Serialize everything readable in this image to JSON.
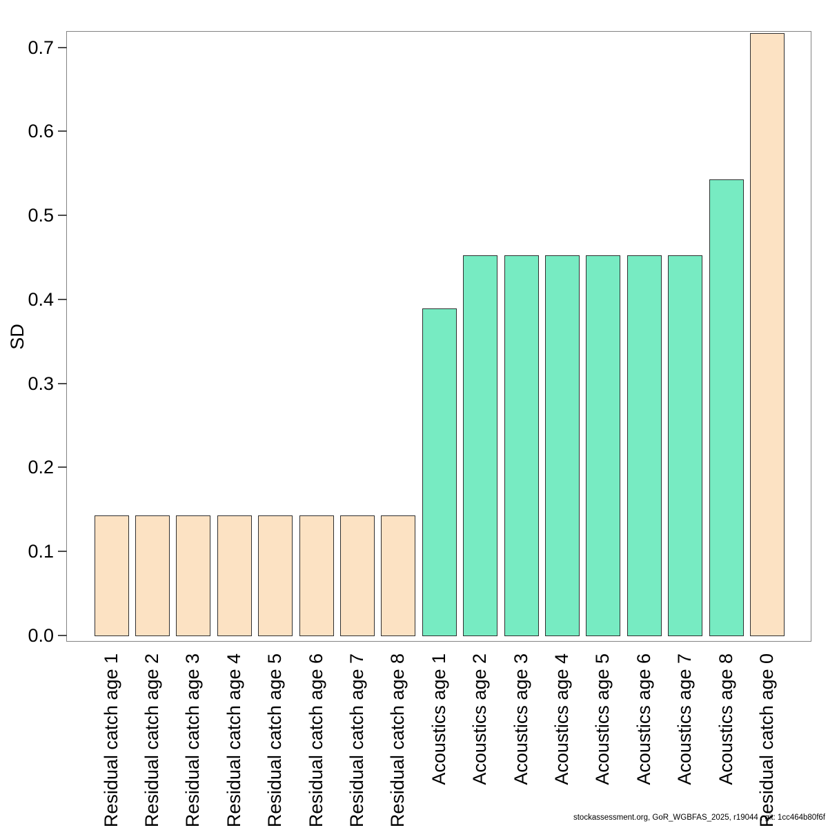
{
  "figure": {
    "background": "#ffffff"
  },
  "footer": {
    "text": "stockassessment.org, GoR_WGBFAS_2025, r19044 , git: 1cc464b80f6f"
  },
  "chart_data": {
    "type": "bar",
    "title": "",
    "xlabel": "",
    "ylabel": "SD",
    "categories": [
      "Residual catch age 1",
      "Residual catch age 2",
      "Residual catch age 3",
      "Residual catch age 4",
      "Residual catch age 5",
      "Residual catch age 6",
      "Residual catch age 7",
      "Residual catch age 8",
      "Acoustics age 1",
      "Acoustics age 2",
      "Acoustics age 3",
      "Acoustics age 4",
      "Acoustics age 5",
      "Acoustics age 6",
      "Acoustics age 7",
      "Acoustics age 8",
      "Residual catch age 0"
    ],
    "values": [
      0.144,
      0.144,
      0.144,
      0.144,
      0.144,
      0.144,
      0.144,
      0.144,
      0.39,
      0.453,
      0.453,
      0.453,
      0.453,
      0.453,
      0.453,
      0.544,
      0.718
    ],
    "bar_groups": [
      "residual_catch",
      "residual_catch",
      "residual_catch",
      "residual_catch",
      "residual_catch",
      "residual_catch",
      "residual_catch",
      "residual_catch",
      "acoustics",
      "acoustics",
      "acoustics",
      "acoustics",
      "acoustics",
      "acoustics",
      "acoustics",
      "acoustics",
      "residual_catch"
    ],
    "colors": {
      "residual_catch": "#FCE2C3",
      "acoustics": "#77EBC2",
      "bar_border": "#2e2e2e",
      "axis_line": "#828282"
    },
    "ylim": [
      0,
      0.72
    ],
    "ytick_labels": [
      "0.0",
      "0.1",
      "0.2",
      "0.3",
      "0.4",
      "0.5",
      "0.6",
      "0.7"
    ],
    "x_tick_label_rotation": 90,
    "grid": false,
    "legend_position": "none"
  }
}
